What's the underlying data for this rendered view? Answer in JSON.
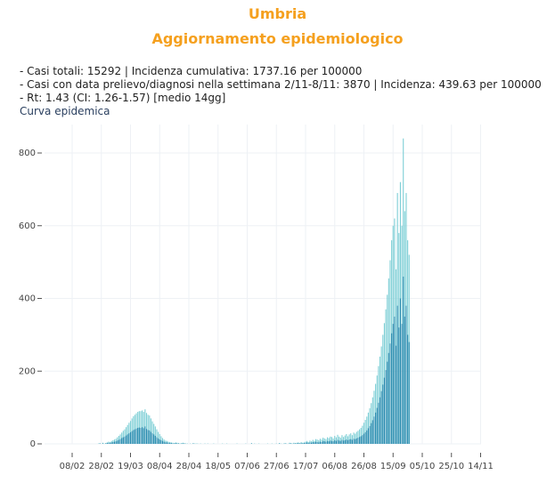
{
  "header": {
    "region": "Umbria",
    "subtitle": "Aggiornamento epidemiologico"
  },
  "info": {
    "line1": "- Casi totali: 15292 | Incidenza cumulativa: 1737.16 per 100000",
    "line2": "- Casi con data prelievo/diagnosi nella settimana 2/11-8/11: 3870 | Incidenza: 439.63 per 100000",
    "line3": "- Rt: 1.43 (CI: 1.26-1.57) [medio 14gg]"
  },
  "chart_title": "Curva epidemica",
  "chart_data": {
    "type": "bar",
    "title": "Curva epidemica",
    "xlabel": "",
    "ylabel": "",
    "x_start": "2020-02-08",
    "x_ticks": [
      "08/02",
      "28/02",
      "19/03",
      "08/04",
      "28/04",
      "18/05",
      "07/06",
      "27/06",
      "17/07",
      "06/08",
      "26/08",
      "15/09",
      "05/10",
      "25/10",
      "14/11"
    ],
    "y_ticks": [
      0,
      200,
      400,
      600,
      800
    ],
    "ylim": [
      0,
      860
    ],
    "series": [
      {
        "name": "",
        "color": "#7ecfd6",
        "values": [
          0,
          0,
          0,
          0,
          0,
          0,
          0,
          0,
          0,
          0,
          0,
          0,
          0,
          0,
          0,
          0,
          0,
          0,
          1,
          2,
          0,
          3,
          1,
          2,
          4,
          6,
          5,
          8,
          10,
          12,
          14,
          18,
          22,
          26,
          31,
          36,
          40,
          46,
          52,
          58,
          63,
          70,
          76,
          80,
          84,
          88,
          90,
          90,
          92,
          88,
          95,
          85,
          80,
          78,
          70,
          62,
          55,
          48,
          40,
          33,
          27,
          21,
          16,
          12,
          9,
          8,
          6,
          5,
          4,
          3,
          2,
          4,
          3,
          2,
          1,
          2,
          3,
          2,
          1,
          1,
          0,
          1,
          0,
          2,
          1,
          1,
          1,
          0,
          1,
          0,
          0,
          1,
          0,
          1,
          0,
          0,
          0,
          1,
          0,
          0,
          0,
          0,
          0,
          1,
          0,
          0,
          1,
          0,
          0,
          0,
          0,
          0,
          0,
          1,
          0,
          0,
          0,
          0,
          0,
          1,
          0,
          0,
          0,
          2,
          0,
          1,
          0,
          0,
          1,
          0,
          0,
          0,
          0,
          0,
          1,
          0,
          0,
          1,
          0,
          0,
          1,
          0,
          2,
          1,
          0,
          1,
          2,
          1,
          0,
          3,
          2,
          1,
          3,
          2,
          3,
          4,
          2,
          5,
          3,
          4,
          6,
          8,
          5,
          9,
          7,
          11,
          8,
          13,
          12,
          10,
          14,
          12,
          17,
          15,
          13,
          18,
          16,
          20,
          19,
          15,
          22,
          18,
          25,
          20,
          17,
          24,
          19,
          23,
          27,
          21,
          26,
          29,
          24,
          31,
          28,
          33,
          36,
          40,
          44,
          50,
          58,
          66,
          75,
          86,
          98,
          112,
          128,
          146,
          165,
          188,
          214,
          240,
          268,
          300,
          332,
          370,
          410,
          455,
          505,
          560,
          600,
          620,
          480,
          690,
          580,
          720,
          600,
          840,
          640,
          690,
          560,
          520
        ]
      },
      {
        "name": "",
        "color": "#2a8bb0",
        "values": [
          0,
          0,
          0,
          0,
          0,
          0,
          0,
          0,
          0,
          0,
          0,
          0,
          0,
          0,
          0,
          0,
          0,
          0,
          0,
          1,
          0,
          1,
          0,
          1,
          2,
          3,
          2,
          4,
          5,
          6,
          7,
          9,
          11,
          13,
          16,
          18,
          20,
          23,
          26,
          29,
          32,
          35,
          38,
          40,
          42,
          44,
          45,
          44,
          46,
          43,
          48,
          41,
          38,
          37,
          33,
          29,
          26,
          22,
          18,
          15,
          12,
          10,
          8,
          6,
          4,
          4,
          3,
          2,
          2,
          1,
          1,
          2,
          1,
          1,
          0,
          1,
          1,
          1,
          0,
          0,
          0,
          0,
          0,
          1,
          0,
          0,
          0,
          0,
          0,
          0,
          0,
          0,
          0,
          0,
          0,
          0,
          0,
          0,
          0,
          0,
          0,
          0,
          0,
          0,
          0,
          0,
          0,
          0,
          0,
          0,
          0,
          0,
          0,
          0,
          0,
          0,
          0,
          0,
          0,
          0,
          0,
          0,
          0,
          1,
          0,
          0,
          0,
          0,
          0,
          0,
          0,
          0,
          0,
          0,
          0,
          0,
          0,
          0,
          0,
          0,
          0,
          0,
          1,
          0,
          0,
          0,
          1,
          0,
          0,
          1,
          1,
          0,
          1,
          1,
          1,
          2,
          1,
          2,
          1,
          2,
          3,
          4,
          2,
          4,
          3,
          5,
          4,
          6,
          5,
          4,
          6,
          5,
          8,
          7,
          6,
          8,
          7,
          9,
          8,
          7,
          10,
          8,
          11,
          9,
          8,
          11,
          9,
          10,
          12,
          10,
          12,
          13,
          11,
          14,
          13,
          15,
          17,
          19,
          21,
          24,
          28,
          32,
          37,
          43,
          49,
          57,
          65,
          75,
          86,
          99,
          113,
          128,
          145,
          163,
          182,
          203,
          226,
          250,
          276,
          304,
          330,
          350,
          270,
          380,
          320,
          400,
          330,
          460,
          350,
          380,
          300,
          280
        ]
      }
    ]
  }
}
